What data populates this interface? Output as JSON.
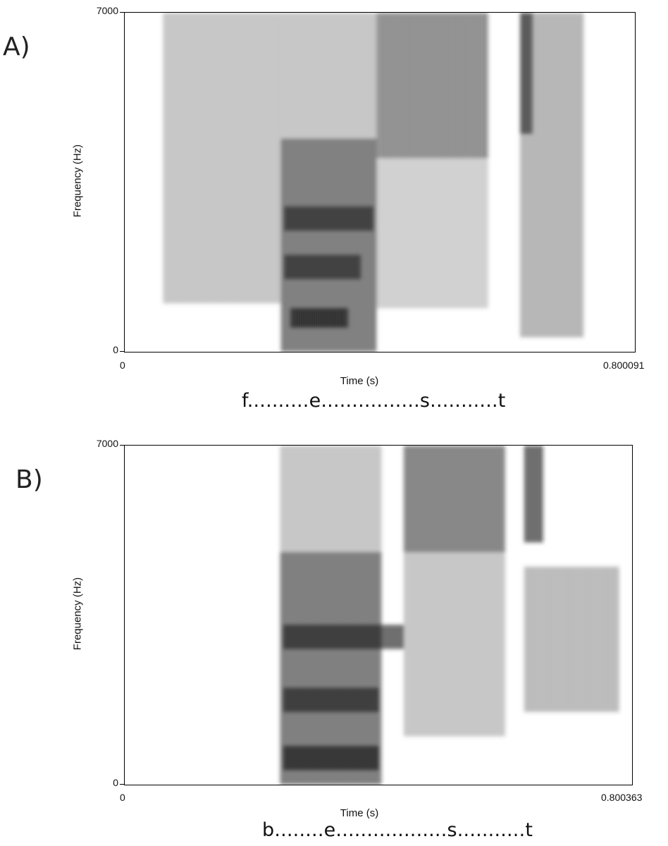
{
  "chart_data": [
    {
      "type": "heatmap",
      "panel_label": "A)",
      "ylabel": "Frequency (Hz)",
      "xlabel": "Time (s)",
      "ylim": [
        0,
        7000
      ],
      "xlim": [
        0,
        0.800091
      ],
      "y_ticks": [
        "7000",
        "0"
      ],
      "x_ticks": [
        "0",
        "0.800091"
      ],
      "segment_label": "f..........e................s...........t",
      "colormap": {
        "low": "#ffffff",
        "high": "#000000"
      },
      "regions": [
        {
          "t": [
            0.06,
            0.245
          ],
          "f": [
            1000,
            7000
          ],
          "intensity": 0.35
        },
        {
          "t": [
            0.245,
            0.395
          ],
          "f": [
            0,
            4400
          ],
          "intensity": 0.75
        },
        {
          "t": [
            0.245,
            0.395
          ],
          "f": [
            4400,
            7000
          ],
          "intensity": 0.35
        },
        {
          "t": [
            0.26,
            0.35
          ],
          "f": [
            500,
            900
          ],
          "intensity": 0.95
        },
        {
          "t": [
            0.25,
            0.37
          ],
          "f": [
            1500,
            2000
          ],
          "intensity": 0.8
        },
        {
          "t": [
            0.25,
            0.39
          ],
          "f": [
            2500,
            3000
          ],
          "intensity": 0.8
        },
        {
          "t": [
            0.395,
            0.57
          ],
          "f": [
            4000,
            7000
          ],
          "intensity": 0.65
        },
        {
          "t": [
            0.395,
            0.57
          ],
          "f": [
            900,
            4000
          ],
          "intensity": 0.3
        },
        {
          "t": [
            0.62,
            0.72
          ],
          "f": [
            300,
            7000
          ],
          "intensity": 0.45
        },
        {
          "t": [
            0.62,
            0.64
          ],
          "f": [
            4500,
            7000
          ],
          "intensity": 0.8
        }
      ]
    },
    {
      "type": "heatmap",
      "panel_label": "B)",
      "ylabel": "Frequency (Hz)",
      "xlabel": "Time (s)",
      "ylim": [
        0,
        7000
      ],
      "xlim": [
        0,
        0.800363
      ],
      "y_ticks": [
        "7000",
        "0"
      ],
      "x_ticks": [
        "0",
        "0.800363"
      ],
      "segment_label": "b........e..................s...........t",
      "colormap": {
        "low": "#ffffff",
        "high": "#000000"
      },
      "regions": [
        {
          "t": [
            0.245,
            0.405
          ],
          "f": [
            0,
            4800
          ],
          "intensity": 0.75
        },
        {
          "t": [
            0.245,
            0.405
          ],
          "f": [
            4800,
            7000
          ],
          "intensity": 0.35
        },
        {
          "t": [
            0.25,
            0.4
          ],
          "f": [
            300,
            800
          ],
          "intensity": 0.95
        },
        {
          "t": [
            0.25,
            0.4
          ],
          "f": [
            1500,
            2000
          ],
          "intensity": 0.85
        },
        {
          "t": [
            0.25,
            0.44
          ],
          "f": [
            2800,
            3300
          ],
          "intensity": 0.85
        },
        {
          "t": [
            0.44,
            0.6
          ],
          "f": [
            4800,
            7000
          ],
          "intensity": 0.7
        },
        {
          "t": [
            0.44,
            0.6
          ],
          "f": [
            1000,
            4800
          ],
          "intensity": 0.35
        },
        {
          "t": [
            0.63,
            0.78
          ],
          "f": [
            1500,
            4500
          ],
          "intensity": 0.4
        },
        {
          "t": [
            0.63,
            0.66
          ],
          "f": [
            5000,
            7000
          ],
          "intensity": 0.85
        }
      ]
    }
  ]
}
